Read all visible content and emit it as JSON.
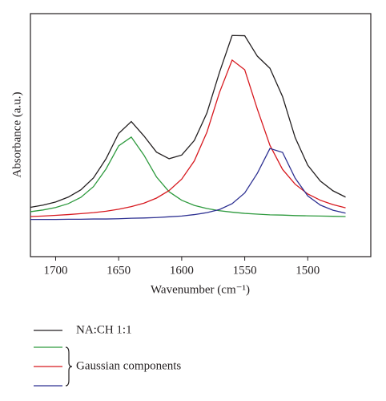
{
  "chart_data": {
    "type": "line",
    "x_label": "Wavenumber (cm⁻¹)",
    "y_label": "Absorbance (a.u.)",
    "x": [
      1720,
      1710,
      1700,
      1690,
      1680,
      1670,
      1660,
      1650,
      1640,
      1630,
      1620,
      1610,
      1600,
      1590,
      1580,
      1570,
      1560,
      1550,
      1540,
      1530,
      1520,
      1510,
      1500,
      1490,
      1480,
      1470
    ],
    "xlim": [
      1720,
      1450
    ],
    "xticks": [
      1700,
      1650,
      1600,
      1550,
      1500
    ],
    "ylim": [
      0,
      1
    ],
    "series": [
      {
        "name": "NA:CH 1:1",
        "color": "#231f20",
        "values": [
          0.203,
          0.212,
          0.225,
          0.245,
          0.275,
          0.324,
          0.403,
          0.507,
          0.556,
          0.497,
          0.43,
          0.403,
          0.418,
          0.478,
          0.591,
          0.759,
          0.91,
          0.909,
          0.825,
          0.775,
          0.659,
          0.49,
          0.376,
          0.311,
          0.271,
          0.245
        ]
      },
      {
        "color": "#2e9a3e",
        "values": [
          0.185,
          0.192,
          0.202,
          0.218,
          0.244,
          0.288,
          0.361,
          0.456,
          0.492,
          0.418,
          0.328,
          0.267,
          0.232,
          0.211,
          0.198,
          0.189,
          0.183,
          0.178,
          0.175,
          0.172,
          0.171,
          0.169,
          0.168,
          0.167,
          0.166,
          0.165
        ]
      },
      {
        "color": "#d7191f",
        "values": [
          0.165,
          0.167,
          0.17,
          0.173,
          0.177,
          0.181,
          0.187,
          0.195,
          0.206,
          0.22,
          0.241,
          0.272,
          0.319,
          0.394,
          0.512,
          0.676,
          0.809,
          0.769,
          0.607,
          0.458,
          0.359,
          0.298,
          0.258,
          0.232,
          0.214,
          0.201
        ]
      },
      {
        "color": "#2e3192",
        "values": [
          0.153,
          0.153,
          0.153,
          0.154,
          0.154,
          0.155,
          0.155,
          0.156,
          0.158,
          0.159,
          0.161,
          0.164,
          0.167,
          0.173,
          0.181,
          0.194,
          0.218,
          0.262,
          0.343,
          0.445,
          0.429,
          0.323,
          0.25,
          0.212,
          0.191,
          0.179
        ]
      }
    ],
    "legend_group_label": "Gaussian components"
  }
}
